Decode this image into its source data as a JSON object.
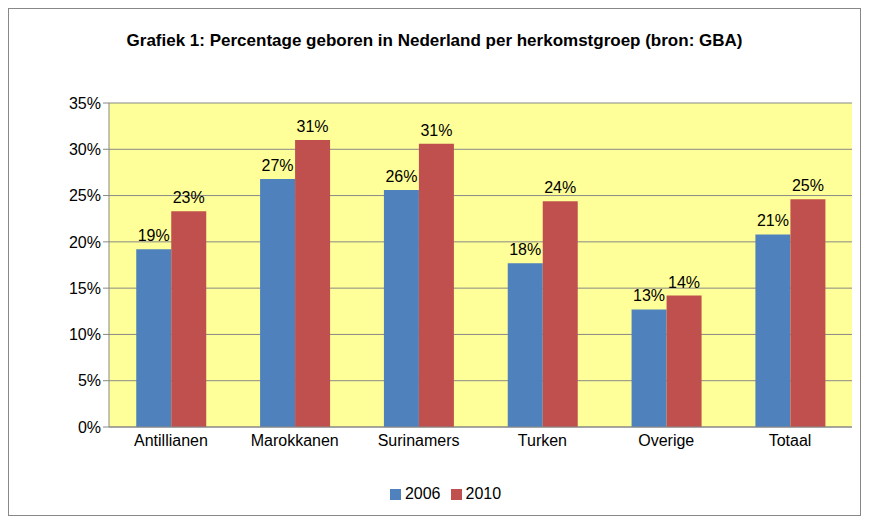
{
  "chart_data": {
    "type": "bar",
    "title": "Grafiek 1: Percentage geboren in Nederland per herkomstgroep (bron: GBA)",
    "categories": [
      "Antillianen",
      "Marokkanen",
      "Surinamers",
      "Turken",
      "Overige",
      "Totaal"
    ],
    "series": [
      {
        "name": "2006",
        "color": "#4F81BD",
        "values": [
          19.2,
          26.8,
          25.6,
          17.7,
          12.7,
          20.8
        ],
        "value_labels": [
          "19%",
          "27%",
          "26%",
          "18%",
          "13%",
          "21%"
        ]
      },
      {
        "name": "2010",
        "color": "#C0504D",
        "values": [
          23.3,
          31.0,
          30.6,
          24.4,
          14.2,
          24.6
        ],
        "value_labels": [
          "23%",
          "31%",
          "31%",
          "24%",
          "14%",
          "25%"
        ]
      }
    ],
    "ylim": [
      0,
      35
    ],
    "yticks": [
      {
        "value": 0,
        "label": "0%"
      },
      {
        "value": 5,
        "label": "5%"
      },
      {
        "value": 10,
        "label": "10%"
      },
      {
        "value": 15,
        "label": "15%"
      },
      {
        "value": 20,
        "label": "20%"
      },
      {
        "value": 25,
        "label": "25%"
      },
      {
        "value": 30,
        "label": "30%"
      },
      {
        "value": 35,
        "label": "35%"
      }
    ],
    "grid": true,
    "legend": "bottom",
    "data_labels": true
  }
}
